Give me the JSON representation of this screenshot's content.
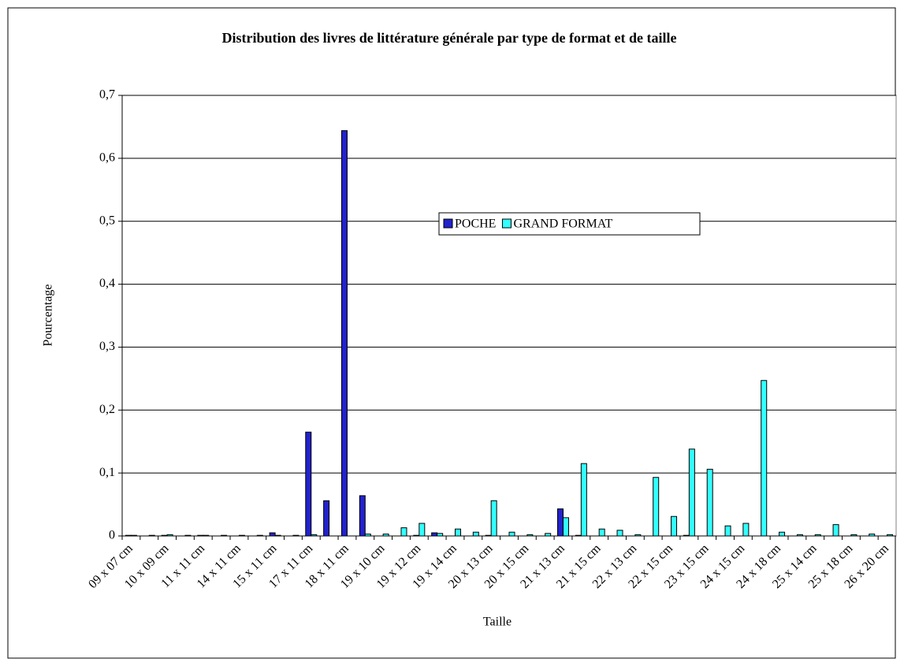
{
  "chart_data": {
    "type": "bar",
    "title": "Distribution des livres de littérature générale par type de format et de taille",
    "x_label": "Taille",
    "y_label": "Pourcentage",
    "categories": [
      "09 x 07 cm",
      null,
      "10 x 09 cm",
      null,
      "11 x 11 cm",
      null,
      "14 x 11 cm",
      null,
      "15 x 11 cm",
      null,
      "17 x 11 cm",
      null,
      "18 x 11 cm",
      null,
      "19 x 10 cm",
      null,
      "19 x 12 cm",
      null,
      "19 x 14 cm",
      null,
      "20 x 13 cm",
      null,
      "20 x 15 cm",
      null,
      "21 x 13 cm",
      null,
      "21 x 15 cm",
      null,
      "22 x 13 cm",
      null,
      "22 x 15 cm",
      null,
      "23 x 15 cm",
      null,
      "24 x 15 cm",
      null,
      "24 x 18 cm",
      null,
      "25 x 14 cm",
      null,
      "25 x 18 cm",
      null,
      "26 x 20 cm"
    ],
    "series": [
      {
        "name": "POCHE",
        "color": "#2222cc",
        "values": [
          0.001,
          0,
          0.001,
          0,
          0.001,
          0,
          0,
          0,
          0.005,
          0,
          0.165,
          0.056,
          0.644,
          0.064,
          0,
          0,
          0.001,
          0.005,
          0,
          0,
          0.001,
          0,
          0,
          0,
          0.043,
          0.001,
          0,
          0,
          0,
          0,
          0,
          0.001,
          0,
          0,
          0,
          0,
          0,
          0,
          0,
          0,
          0,
          0,
          0
        ]
      },
      {
        "name": "GRAND FORMAT",
        "color": "#33ffff",
        "values": [
          0.001,
          0.001,
          0.002,
          0.001,
          0.001,
          0.001,
          0.001,
          0.001,
          0.001,
          0.001,
          0.002,
          0,
          0,
          0.003,
          0.003,
          0.013,
          0.02,
          0.004,
          0.011,
          0.006,
          0.056,
          0.006,
          0.002,
          0.004,
          0.029,
          0.115,
          0.011,
          0.009,
          0.002,
          0.093,
          0.031,
          0.138,
          0.106,
          0.016,
          0.02,
          0.247,
          0.006,
          0.002,
          0.002,
          0.018,
          0.002,
          0.003,
          0.002
        ]
      }
    ],
    "ylim": [
      0,
      0.7
    ],
    "yticks": [
      0,
      {
        "value": 0.1,
        "label": "0,1"
      },
      {
        "value": 0.2,
        "label": "0,2"
      },
      {
        "value": 0.3,
        "label": "0,3"
      },
      {
        "value": 0.4,
        "label": "0,4"
      },
      {
        "value": 0.5,
        "label": "0,5"
      },
      {
        "value": 0.6,
        "label": "0,6"
      },
      {
        "value": 0.7,
        "label": "0,7"
      }
    ],
    "grid": true,
    "legend": "center"
  }
}
